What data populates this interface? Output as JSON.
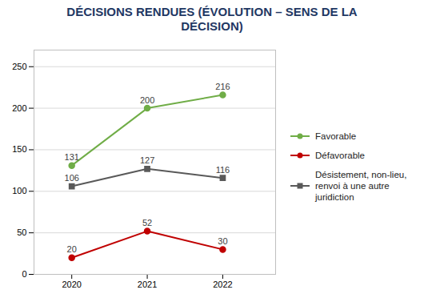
{
  "chart_data": {
    "type": "line",
    "title": "DÉCISIONS RENDUES (ÉVOLUTION – SENS DE LA\nDÉCISION)",
    "x": [
      2020,
      2021,
      2022
    ],
    "series": [
      {
        "name": "Favorable",
        "color": "#70ad47",
        "marker": "circle",
        "values": [
          131,
          200,
          216
        ]
      },
      {
        "name": "Défavorable",
        "color": "#c00000",
        "marker": "circle",
        "values": [
          20,
          52,
          30
        ]
      },
      {
        "name": "Désistement, non-lieu,\nrenvoi à une autre\njuridiction",
        "color": "#595959",
        "marker": "square",
        "values": [
          106,
          127,
          116
        ]
      }
    ],
    "xlim": [
      2019.5,
      2022.7
    ],
    "xticks": [
      2020,
      2021,
      2022
    ],
    "ylim": [
      0,
      270
    ],
    "yticks": [
      0,
      50,
      100,
      150,
      200,
      250
    ],
    "grid": true,
    "legend": "right",
    "data_labels": true
  }
}
